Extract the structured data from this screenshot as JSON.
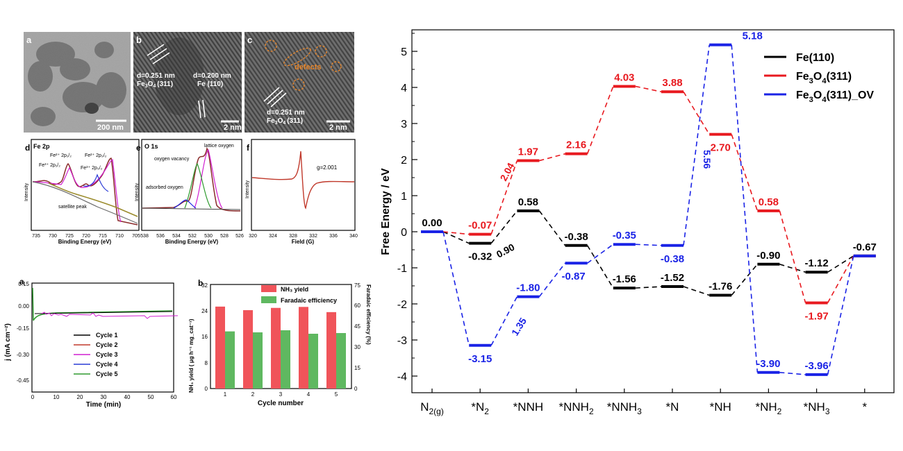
{
  "figure": {
    "panel_letters": {
      "tem_a": "a",
      "tem_b": "b",
      "tem_c": "c",
      "xps_d": "d",
      "xps_e": "e",
      "epr_f": "f",
      "cycle_a": "a",
      "cycle_b": "b"
    },
    "tem": {
      "scale_a": "200 nm",
      "scale_b": "2 nm",
      "scale_c": "2 nm",
      "b_d1": "d=0.251 nm",
      "b_l1_main": "Fe",
      "b_l1_sub1": "3",
      "b_l1_mid": "O",
      "b_l1_sub2": "4",
      "b_l1_tail": "(311)",
      "b_d2": "d=0.200 nm",
      "b_l2": "Fe (110)",
      "c_defects": "defects",
      "c_d": "d=0.251 nm",
      "c_l_main": "Fe",
      "c_l_sub1": "3",
      "c_l_mid": "O",
      "c_l_sub2": "4",
      "c_l_tail": "(311)"
    },
    "xps_d": {
      "title": "Fe 2p",
      "ylabel": "Intensity",
      "xlabel": "Binding Energy (eV)",
      "xticks": [
        "735",
        "730",
        "725",
        "720",
        "715",
        "710",
        "705"
      ],
      "peaks": [
        "Fe³⁺ 2p₁/₂",
        "Fe²⁺ 2p₁/₂",
        "Fe²⁺ 2p₃/₂",
        "Fe³⁺ 2p₃/₂"
      ],
      "satellite": "satellite peak"
    },
    "xps_e": {
      "title": "O 1s",
      "ylabel": "Intensity",
      "xlabel": "Binding Energy (eV)",
      "xticks": [
        "538",
        "536",
        "534",
        "532",
        "530",
        "528",
        "526"
      ],
      "lattice": "lattice oxygen",
      "vacancy": "oxygen vacancy",
      "adsorbed": "adsorbed oxygen"
    },
    "epr_f": {
      "ylabel": "Intensity",
      "xlabel": "Field (G)",
      "xticks": [
        "320",
        "324",
        "328",
        "332",
        "336",
        "340"
      ],
      "g": "g=2.001"
    },
    "cycle_a": {
      "ylabel": "j (mA cm⁻²)",
      "xlabel": "Time (min)",
      "yticks": [
        "0.15",
        "0.00",
        "-0.15",
        "-0.30",
        "-0.45"
      ],
      "xticks": [
        "0",
        "10",
        "20",
        "30",
        "40",
        "50",
        "60"
      ],
      "legend": [
        {
          "name": "Cycle 1",
          "color": "#000000"
        },
        {
          "name": "Cycle 2",
          "color": "#c0392b"
        },
        {
          "name": "Cycle 3",
          "color": "#d11fd1"
        },
        {
          "name": "Cycle 4",
          "color": "#2a3bd6"
        },
        {
          "name": "Cycle 5",
          "color": "#2e9a2e"
        }
      ]
    },
    "cycle_b": {
      "ylabel_left": "NH₃ yield ( μg h⁻¹ mg_cat⁻¹)",
      "ylabel_right": "Faradaic efficiency (%)",
      "xlabel": "Cycle number",
      "yticks_left": [
        "0",
        "8",
        "16",
        "24",
        "32"
      ],
      "yticks_right": [
        "0",
        "15",
        "30",
        "45",
        "60",
        "75"
      ],
      "categories": [
        "1",
        "2",
        "3",
        "4",
        "5"
      ],
      "legend_nh3": "NH₃ yield",
      "legend_fe": "Faradaic efficiency",
      "nh3_yield": [
        25.2,
        24.1,
        24.8,
        25.1,
        23.5
      ],
      "faradaic_efficiency": [
        41.2,
        40.5,
        42.0,
        39.5,
        40.0
      ],
      "color_nh3": "#f0545a",
      "color_fe": "#5fb860"
    }
  },
  "chart_data": {
    "type": "line",
    "title": "",
    "ylabel": "Free Energy / eV",
    "xlabel": "",
    "ylim": [
      -4.5,
      5.5
    ],
    "yticks": [
      -4,
      -3,
      -2,
      -1,
      0,
      1,
      2,
      3,
      4,
      5
    ],
    "categories": [
      "N2(g)",
      "*N2",
      "*NNH",
      "*NNH2",
      "*NNH3",
      "*N",
      "*NH",
      "*NH2",
      "*NH3",
      "*"
    ],
    "category_labels": [
      {
        "main": "N",
        "sub": "2(g)",
        "tail": ""
      },
      {
        "main": "*N",
        "sub": "2",
        "tail": ""
      },
      {
        "main": "*NNH",
        "sub": "",
        "tail": ""
      },
      {
        "main": "*NNH",
        "sub": "2",
        "tail": ""
      },
      {
        "main": "*NNH",
        "sub": "3",
        "tail": ""
      },
      {
        "main": "*N",
        "sub": "",
        "tail": ""
      },
      {
        "main": "*NH",
        "sub": "",
        "tail": ""
      },
      {
        "main": "*NH",
        "sub": "2",
        "tail": ""
      },
      {
        "main": "*NH",
        "sub": "3",
        "tail": ""
      },
      {
        "main": "*",
        "sub": "",
        "tail": ""
      }
    ],
    "series": [
      {
        "name": "Fe(110)",
        "legend": {
          "main": "Fe(110)",
          "parts": []
        },
        "color": "#000000",
        "values": [
          0.0,
          -0.32,
          0.58,
          -0.38,
          -1.56,
          -1.52,
          -1.76,
          -0.9,
          -1.12,
          -0.67
        ],
        "labels": [
          "0.00",
          "-0.32",
          "0.58",
          "-0.38",
          "-1.56",
          "-1.52",
          "-1.76",
          "-0.90",
          "-1.12",
          "-0.67"
        ]
      },
      {
        "name": "Fe3O4(311)",
        "legend": {
          "main": "Fe",
          "parts": [
            [
              "3",
              "sub"
            ],
            [
              "O",
              "n"
            ],
            [
              "4",
              "sub"
            ],
            [
              "(311)",
              "n"
            ]
          ]
        },
        "color": "#e8191f",
        "values": [
          0.0,
          -0.07,
          1.97,
          2.16,
          4.03,
          3.88,
          2.7,
          0.58,
          -1.97,
          -0.67
        ],
        "labels": [
          "",
          "-0.07",
          "1.97",
          "2.16",
          "4.03",
          "3.88",
          "2.70",
          "0.58",
          "-1.97",
          ""
        ]
      },
      {
        "name": "Fe3O4(311)_OV",
        "legend": {
          "main": "Fe",
          "parts": [
            [
              "3",
              "sub"
            ],
            [
              "O",
              "n"
            ],
            [
              "4",
              "sub"
            ],
            [
              "(311)_OV",
              "n"
            ]
          ]
        },
        "color": "#1a23e6",
        "values": [
          0.0,
          -3.15,
          -1.8,
          -0.87,
          -0.35,
          -0.38,
          5.18,
          -3.9,
          -3.96,
          -0.67
        ],
        "labels": [
          "",
          "-3.15",
          "-1.80",
          "-0.87",
          "-0.35",
          "-0.38",
          "5.18",
          "-3.90",
          "-3.96",
          ""
        ]
      }
    ],
    "annotations": [
      {
        "text": "0.90",
        "series": "Fe(110)",
        "step": "*N2→*NNH"
      },
      {
        "text": "2.04",
        "series": "Fe3O4(311)",
        "step": "*N2→*NNH"
      },
      {
        "text": "1.35",
        "series": "Fe3O4(311)_OV",
        "step": "*N2→*NNH"
      },
      {
        "text": "5.56",
        "series": "Fe3O4(311)_OV",
        "step": "*N→*NH"
      }
    ]
  }
}
